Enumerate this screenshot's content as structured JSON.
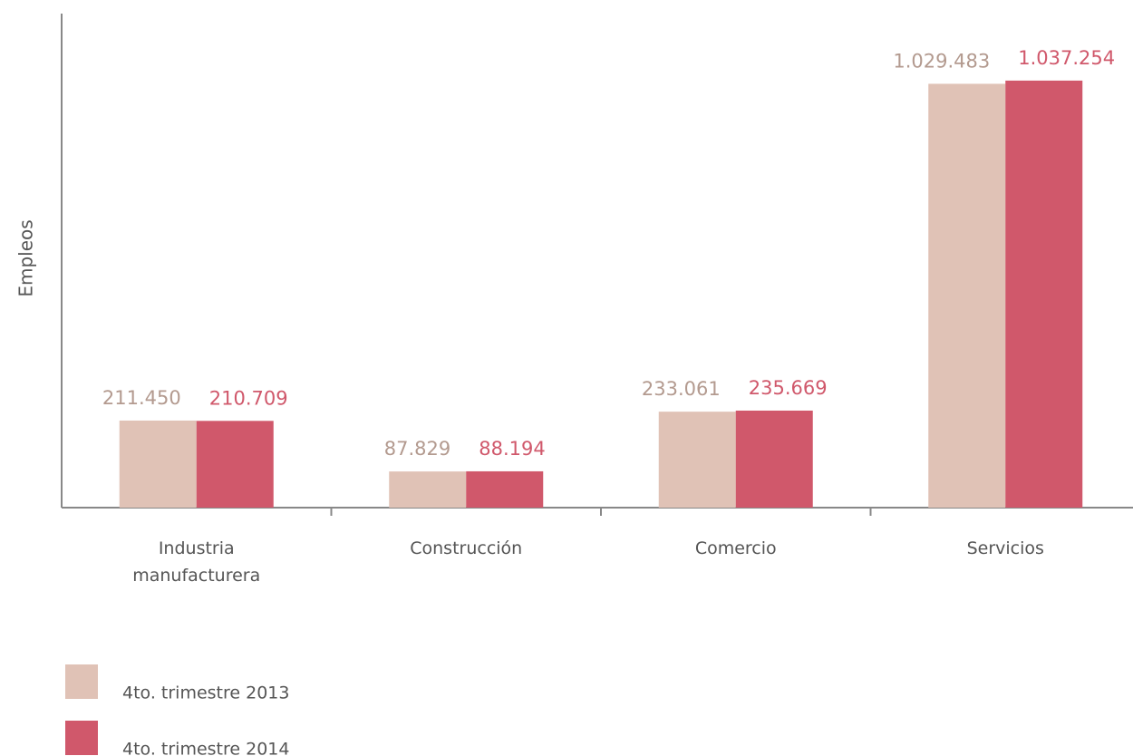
{
  "chart_data": {
    "type": "bar",
    "y_label": "Empleos",
    "categories": [
      "Industria manufacturera",
      "Construcción",
      "Comercio",
      "Servicios"
    ],
    "series": [
      {
        "name": "4to. trimestre 2013",
        "color": "#e0c2b6",
        "label_color": "#b39a8f",
        "values": [
          211450,
          87829,
          233061,
          1029483
        ],
        "value_labels": [
          "211.450",
          "87.829",
          "233.061",
          "1.029.483"
        ]
      },
      {
        "name": "4to. trimestre 2014",
        "color": "#d0586b",
        "label_color": "#d0586b",
        "values": [
          210709,
          88194,
          235669,
          1037254
        ],
        "value_labels": [
          "210.709",
          "88.194",
          "235.669",
          "1.037.254"
        ]
      }
    ],
    "ylim": [
      0,
      1200000
    ],
    "grid": false,
    "legend": "bottom-left"
  }
}
